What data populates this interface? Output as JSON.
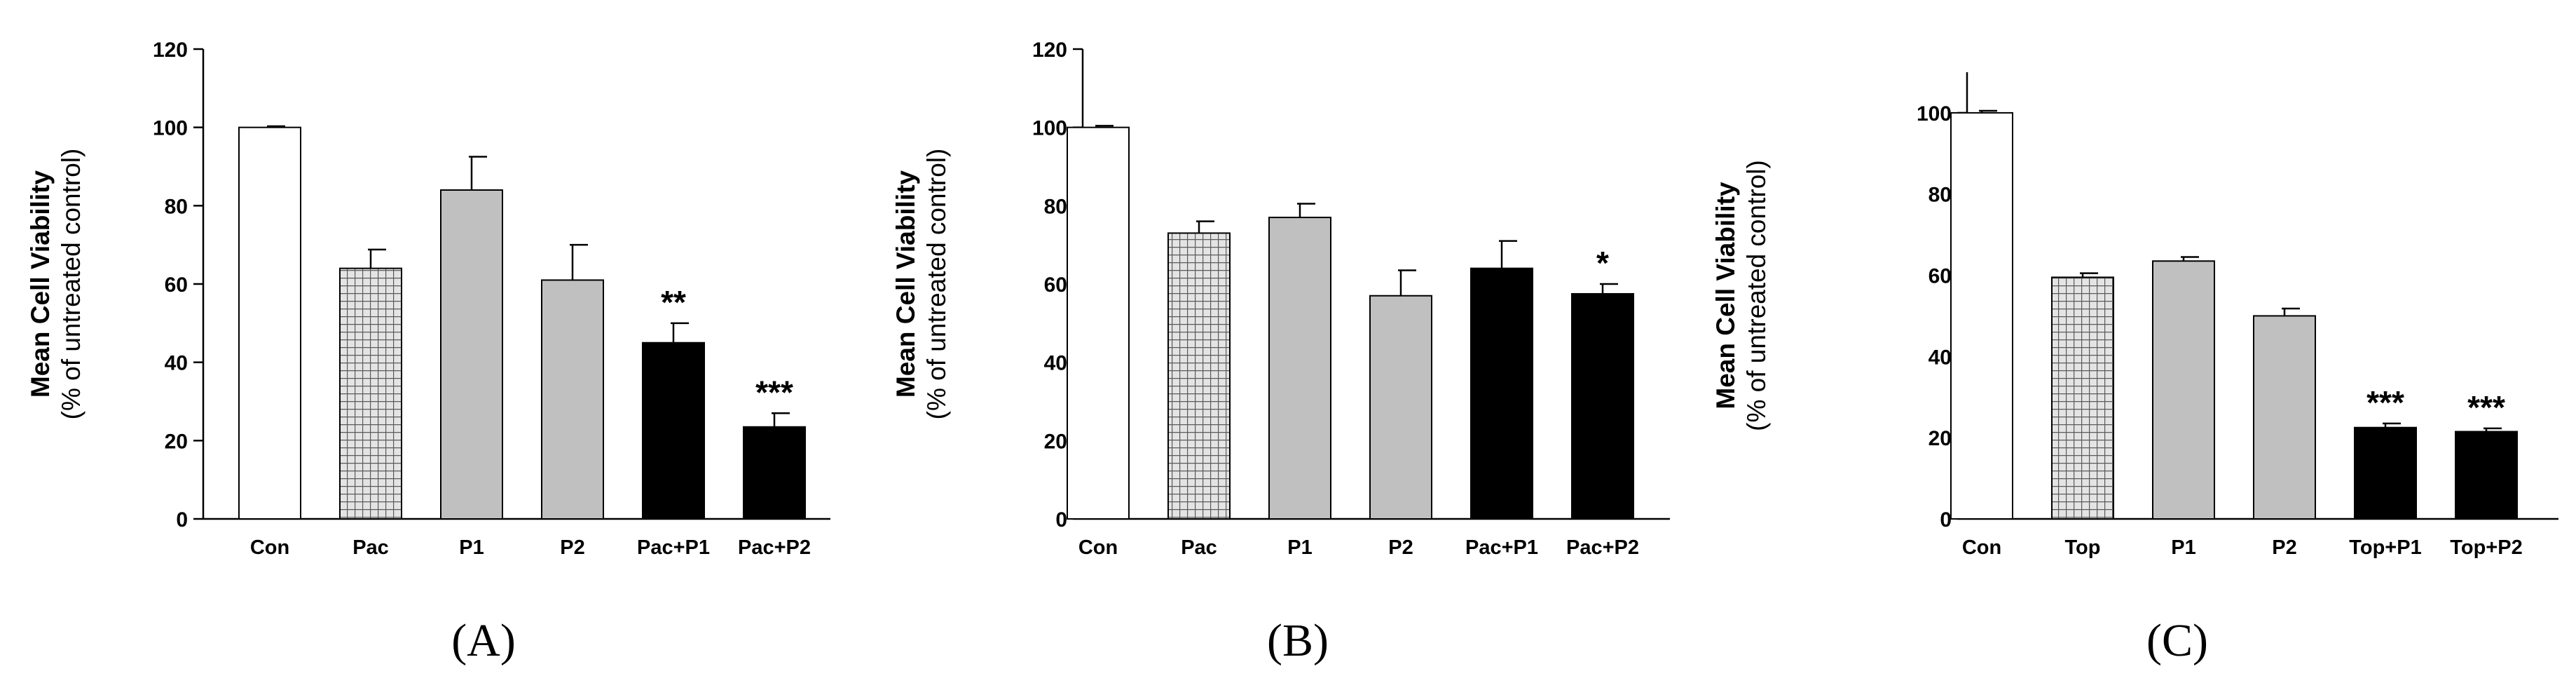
{
  "chart_data": [
    {
      "type": "bar",
      "panel_label": "(A)",
      "ylabel_main": "Mean Cell Viability",
      "ylabel_sub": "(% of untreated control)",
      "categories": [
        "Con",
        "Pac",
        "P1",
        "P2",
        "Pac+P1",
        "Pac+P2"
      ],
      "values": [
        100,
        64,
        84,
        61,
        45,
        23.5
      ],
      "errors": [
        0.3,
        4.8,
        8.5,
        9,
        5,
        3.5
      ],
      "significance": [
        "",
        "",
        "",
        "",
        "**",
        "***"
      ],
      "fills": [
        "white",
        "grid",
        "gray",
        "gray",
        "black",
        "black"
      ],
      "ylim": [
        0,
        120
      ],
      "yticks": [
        "0",
        "20",
        "40",
        "60",
        "80",
        "100",
        "120"
      ]
    },
    {
      "type": "bar",
      "panel_label": "(B)",
      "ylabel_main": "Mean Cell Viability",
      "ylabel_sub": "(% of untreated control)",
      "categories": [
        "Con",
        "Pac",
        "P1",
        "P2",
        "Pac+P1",
        "Pac+P2"
      ],
      "values": [
        100,
        73,
        77,
        57,
        64,
        57.5
      ],
      "errors": [
        0.4,
        3,
        3.5,
        6.5,
        7,
        2.5
      ],
      "significance": [
        "",
        "",
        "",
        "",
        "",
        "*"
      ],
      "fills": [
        "white",
        "grid",
        "gray",
        "gray",
        "black",
        "black"
      ],
      "ylim": [
        0,
        120
      ],
      "yticks": [
        "0",
        "20",
        "40",
        "60",
        "80",
        "100",
        "120"
      ]
    },
    {
      "type": "bar",
      "panel_label": "(C)",
      "ylabel_main": "Mean Cell Viability",
      "ylabel_sub": "(% of untreated control)",
      "categories": [
        "Con",
        "Top",
        "P1",
        "P2",
        "Top+P1",
        "Top+P2"
      ],
      "values": [
        100,
        59.5,
        63.5,
        50,
        22.5,
        21.5
      ],
      "errors": [
        0.5,
        1,
        1,
        1.8,
        1,
        0.8
      ],
      "significance": [
        "",
        "",
        "",
        "",
        "***",
        "***"
      ],
      "fills": [
        "white",
        "grid",
        "gray",
        "gray",
        "black",
        "black"
      ],
      "ylim": [
        0,
        110
      ],
      "yticks": [
        "0",
        "20",
        "40",
        "60",
        "80",
        "100"
      ]
    }
  ]
}
